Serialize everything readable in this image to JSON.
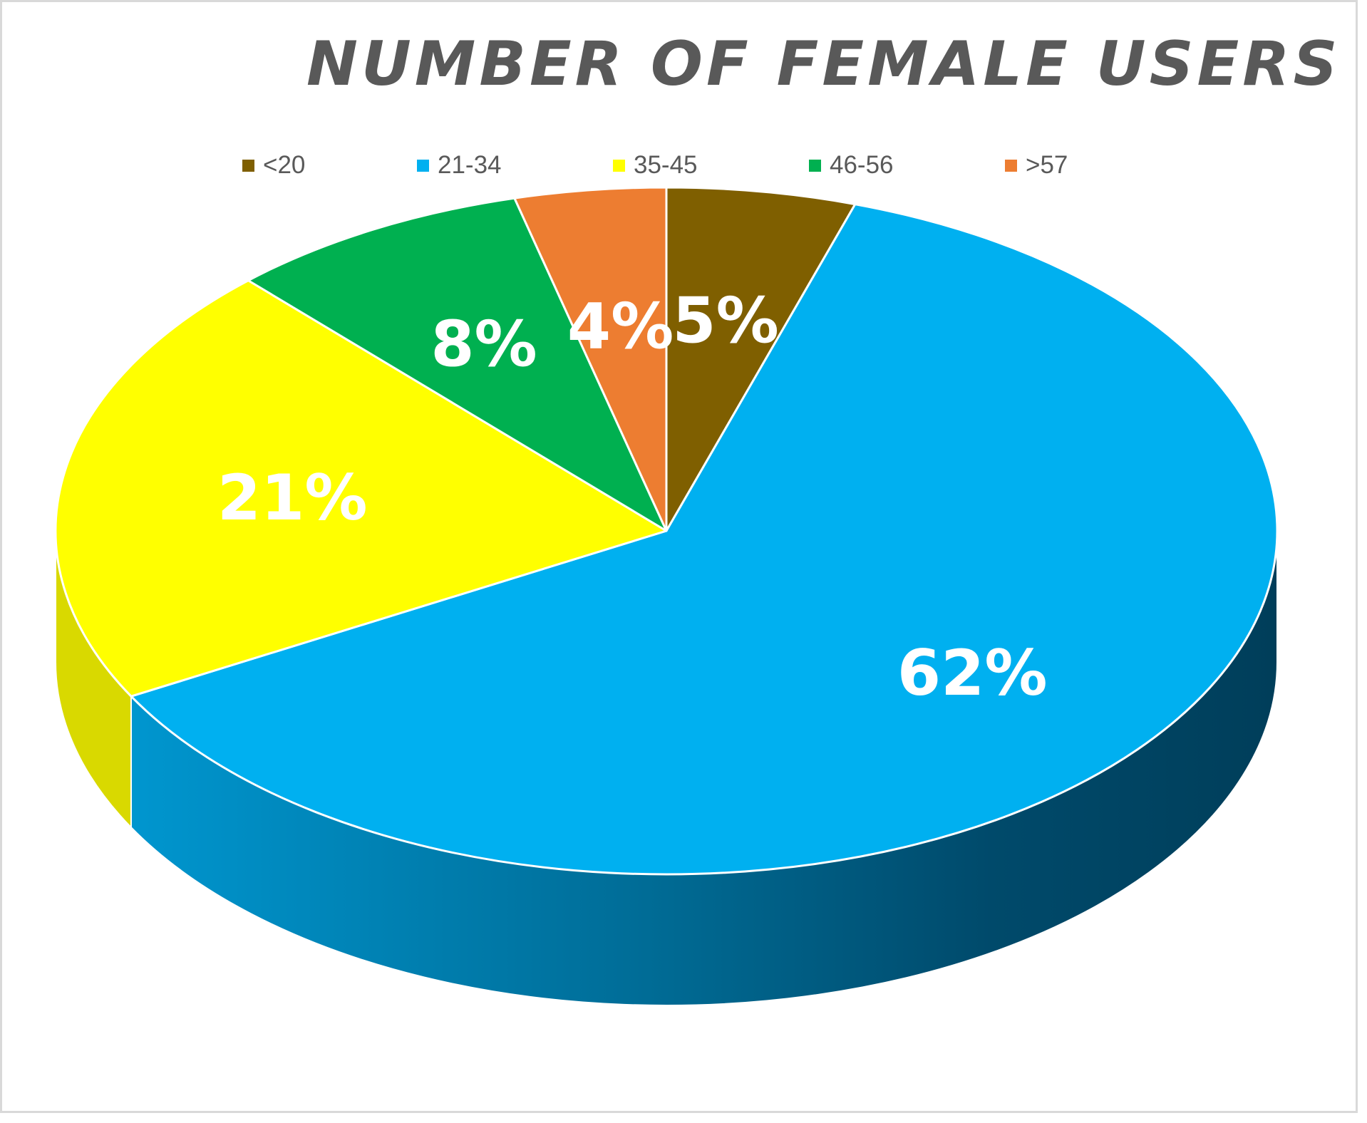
{
  "chart_data": {
    "type": "pie",
    "title": "NUMBER OF FEMALE USERS",
    "categories": [
      "<20",
      "21-34",
      "35-45",
      "46-56",
      ">57"
    ],
    "values": [
      5,
      62,
      21,
      8,
      4
    ],
    "labels": [
      "5%",
      "62%",
      "21%",
      "8%",
      "4%"
    ],
    "colors": [
      "#7f5f00",
      "#00b0f0",
      "#ffff00",
      "#00b050",
      "#ed7d31"
    ],
    "side_colors": [
      "#5a4300",
      "#0077a8",
      "#d9d900",
      "#007a3a",
      "#b85a1c"
    ],
    "legend_position": "top",
    "style": "3d"
  }
}
